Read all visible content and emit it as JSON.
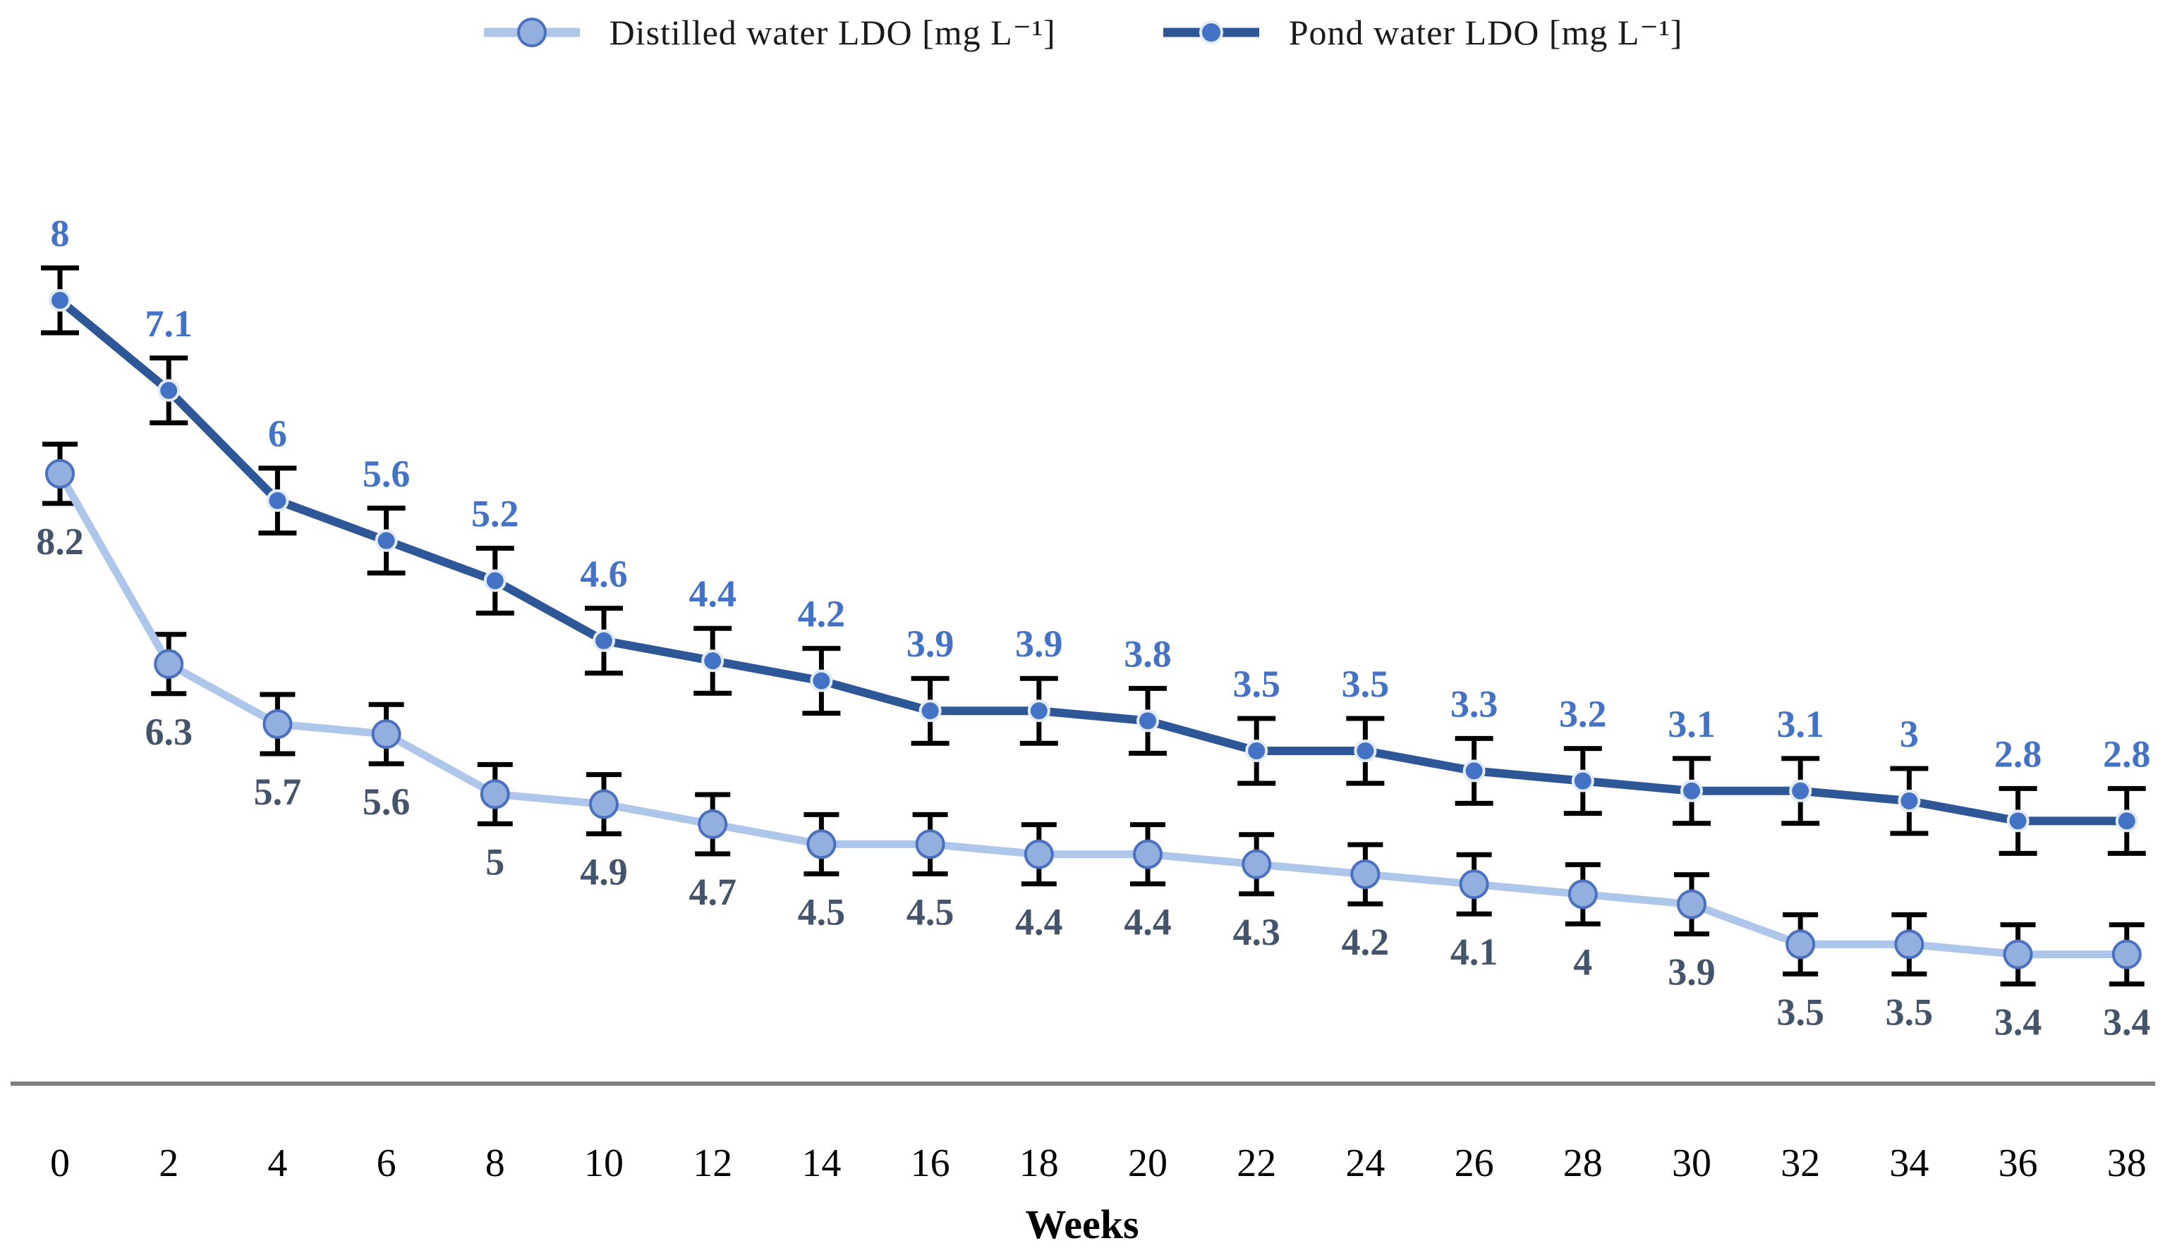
{
  "chart_data": {
    "type": "line",
    "title": "",
    "xlabel": "Weeks",
    "ylabel": "",
    "x": [
      0,
      2,
      4,
      6,
      8,
      10,
      12,
      14,
      16,
      18,
      20,
      22,
      24,
      26,
      28,
      30,
      32,
      34,
      36,
      38
    ],
    "grid": false,
    "legend_position": "top",
    "data_labels": true,
    "error_bars": true,
    "series": [
      {
        "name": "Distilled water LDO [mg L⁻¹]",
        "values": [
          8.2,
          6.3,
          5.7,
          5.6,
          5,
          4.9,
          4.7,
          4.5,
          4.5,
          4.4,
          4.4,
          4.3,
          4.2,
          4.1,
          4,
          3.9,
          3.5,
          3.5,
          3.4,
          3.4
        ],
        "line_color": "#aec6ea",
        "marker_color": "#92afdd",
        "marker_edge_color": "#4a70bf",
        "label_color": "#44546a"
      },
      {
        "name": "Pond water LDO [mg L⁻¹]",
        "values": [
          8,
          7.1,
          6,
          5.6,
          5.2,
          4.6,
          4.4,
          4.2,
          3.9,
          3.9,
          3.8,
          3.5,
          3.5,
          3.3,
          3.2,
          3.1,
          3.1,
          3,
          2.8,
          2.8
        ],
        "line_color": "#2e5797",
        "marker_color": "#4472c4",
        "marker_edge_color": "#e3ebf7",
        "label_color": "#4472c4"
      }
    ],
    "error_bar_color": "#000000",
    "axis_line_color": "#808080",
    "tick_label_color": "#000000"
  }
}
